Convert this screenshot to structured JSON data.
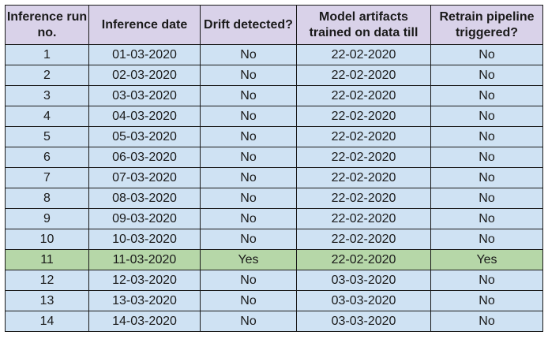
{
  "table": {
    "headers": [
      "Inference run no.",
      "Inference date",
      "Drift detected?",
      "Model artifacts trained on data till",
      "Retrain pipeline triggered?"
    ],
    "highlight_color": "#b6d7a8",
    "cell_color": "#cfe2f3",
    "header_color": "#d9d2e9",
    "rows": [
      {
        "run": "1",
        "date": "01-03-2020",
        "drift": "No",
        "trained": "22-02-2020",
        "retrain": "No",
        "highlight": false
      },
      {
        "run": "2",
        "date": "02-03-2020",
        "drift": "No",
        "trained": "22-02-2020",
        "retrain": "No",
        "highlight": false
      },
      {
        "run": "3",
        "date": "03-03-2020",
        "drift": "No",
        "trained": "22-02-2020",
        "retrain": "No",
        "highlight": false
      },
      {
        "run": "4",
        "date": "04-03-2020",
        "drift": "No",
        "trained": "22-02-2020",
        "retrain": "No",
        "highlight": false
      },
      {
        "run": "5",
        "date": "05-03-2020",
        "drift": "No",
        "trained": "22-02-2020",
        "retrain": "No",
        "highlight": false
      },
      {
        "run": "6",
        "date": "06-03-2020",
        "drift": "No",
        "trained": "22-02-2020",
        "retrain": "No",
        "highlight": false
      },
      {
        "run": "7",
        "date": "07-03-2020",
        "drift": "No",
        "trained": "22-02-2020",
        "retrain": "No",
        "highlight": false
      },
      {
        "run": "8",
        "date": "08-03-2020",
        "drift": "No",
        "trained": "22-02-2020",
        "retrain": "No",
        "highlight": false
      },
      {
        "run": "9",
        "date": "09-03-2020",
        "drift": "No",
        "trained": "22-02-2020",
        "retrain": "No",
        "highlight": false
      },
      {
        "run": "10",
        "date": "10-03-2020",
        "drift": "No",
        "trained": "22-02-2020",
        "retrain": "No",
        "highlight": false
      },
      {
        "run": "11",
        "date": "11-03-2020",
        "drift": "Yes",
        "trained": "22-02-2020",
        "retrain": "Yes",
        "highlight": true
      },
      {
        "run": "12",
        "date": "12-03-2020",
        "drift": "No",
        "trained": "03-03-2020",
        "retrain": "No",
        "highlight": false
      },
      {
        "run": "13",
        "date": "13-03-2020",
        "drift": "No",
        "trained": "03-03-2020",
        "retrain": "No",
        "highlight": false
      },
      {
        "run": "14",
        "date": "14-03-2020",
        "drift": "No",
        "trained": "03-03-2020",
        "retrain": "No",
        "highlight": false
      }
    ]
  }
}
